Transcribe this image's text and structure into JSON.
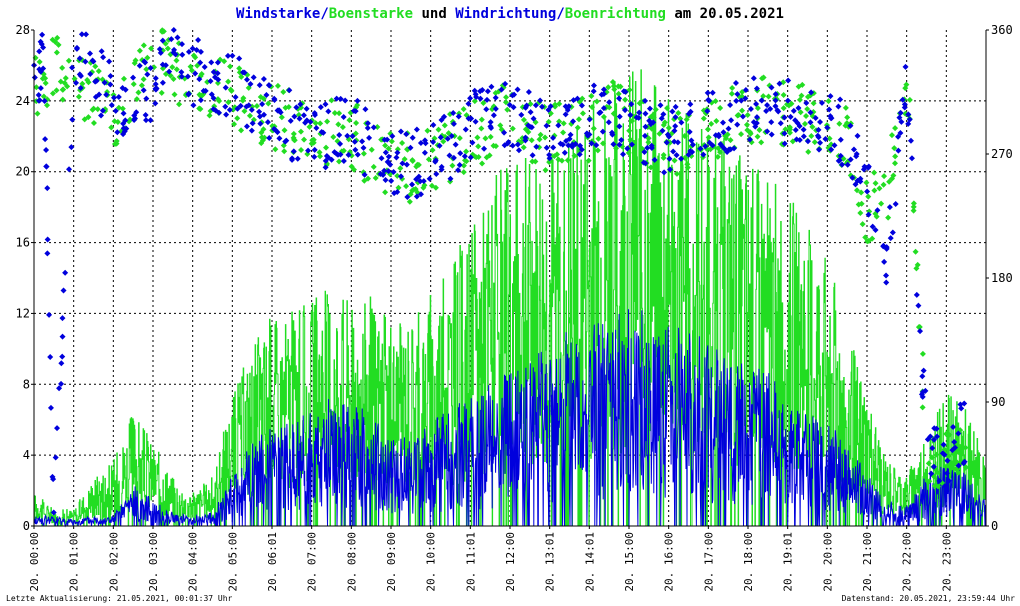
{
  "chart_data": {
    "type": "line",
    "title": {
      "part1": "Windstarke/",
      "part2": "Boenstarke",
      "part3": " und ",
      "part4": "Windrichtung/",
      "part5": "Boenrichtung",
      "part6": " am 20.05.2021"
    },
    "xlim": [
      0,
      24
    ],
    "ylim_left": [
      0,
      28
    ],
    "ylim_right": [
      0,
      360
    ],
    "yticks_left": [
      "0",
      "4",
      "8",
      "12",
      "16",
      "20",
      "24",
      "28"
    ],
    "yticks_right": [
      "0",
      "90",
      "180",
      "270",
      "360"
    ],
    "xticks": [
      "20. 00:00",
      "20. 01:00",
      "20. 02:00",
      "20. 03:00",
      "20. 04:00",
      "20. 05:00",
      "20. 06:01",
      "20. 07:00",
      "20. 08:00",
      "20. 09:00",
      "20. 10:00",
      "20. 11:01",
      "20. 12:00",
      "20. 13:01",
      "20. 14:01",
      "20. 15:00",
      "20. 16:00",
      "20. 17:00",
      "20. 18:00",
      "20. 19:01",
      "20. 20:00",
      "20. 21:00",
      "20. 22:00",
      "20. 23:00"
    ],
    "grid": true,
    "footer_left": "Letzte Aktualisierung: 21.05.2021, 00:01:37 Uhr",
    "footer_right": "Datenstand: 20.05.2021, 23:59:44 Uhr",
    "colors": {
      "wind": "#0000dd",
      "gust": "#22dd22",
      "grid": "#000000",
      "axis": "#000000"
    },
    "series": [
      {
        "name": "Windstarke",
        "x": [
          0,
          0.5,
          1,
          1.5,
          2,
          2.5,
          3,
          3.5,
          4,
          4.5,
          5,
          5.5,
          6,
          6.5,
          7,
          7.5,
          8,
          8.5,
          9,
          9.5,
          10,
          10.5,
          11,
          11.5,
          12,
          12.5,
          13,
          13.5,
          14,
          14.5,
          15,
          15.5,
          16,
          16.5,
          17,
          17.5,
          18,
          18.5,
          19,
          19.5,
          20,
          20.5,
          21,
          21.5,
          22,
          22.5,
          23,
          23.5,
          24
        ],
        "values": [
          0.3,
          0.3,
          0.2,
          0.3,
          0.3,
          1.2,
          0.8,
          0.4,
          0.3,
          0.4,
          1.5,
          2.5,
          3,
          3.2,
          3.3,
          3.8,
          3.5,
          3.5,
          2.5,
          2.8,
          3.2,
          3.5,
          3.8,
          4.2,
          4.5,
          5,
          5.5,
          5.8,
          6,
          6.2,
          6.5,
          6.3,
          6,
          5.8,
          5.5,
          5,
          4.8,
          4.5,
          4,
          3.5,
          3,
          2.5,
          1.5,
          0.8,
          0.6,
          1.5,
          2,
          1.5,
          0.8
        ]
      },
      {
        "name": "Boenstarke",
        "x": [
          0,
          0.5,
          1,
          1.5,
          2,
          2.5,
          3,
          3.5,
          4,
          4.5,
          5,
          5.5,
          6,
          6.5,
          7,
          7.5,
          8,
          8.5,
          9,
          9.5,
          10,
          10.5,
          11,
          11.5,
          12,
          12.5,
          13,
          13.5,
          14,
          14.5,
          15,
          15.5,
          16,
          16.5,
          17,
          17.5,
          18,
          18.5,
          19,
          19.5,
          20,
          20.5,
          21,
          21.5,
          22,
          22.5,
          23,
          23.5,
          24
        ],
        "values": [
          1,
          0.5,
          0.5,
          1.5,
          2,
          3.5,
          2.5,
          1.5,
          1,
          1.5,
          4,
          5.5,
          6.5,
          6.5,
          6.8,
          7.5,
          7,
          7,
          6,
          6.5,
          7,
          8,
          9,
          10.5,
          11,
          11.5,
          12,
          12.5,
          13,
          13.5,
          14,
          13.5,
          13,
          12.5,
          12,
          11.5,
          11,
          10.5,
          10,
          9,
          8,
          6,
          4,
          2,
          1.5,
          3,
          4,
          3.5,
          2
        ]
      },
      {
        "name": "Windrichtung",
        "x": [
          0,
          0.25,
          0.5,
          1,
          1.5,
          2,
          2.5,
          3,
          3.5,
          4,
          4.5,
          5,
          5.5,
          6,
          6.5,
          7,
          7.5,
          8,
          8.5,
          9,
          9.5,
          10,
          10.5,
          11,
          11.5,
          12,
          12.5,
          13,
          13.5,
          14,
          14.5,
          15,
          15.5,
          16,
          16.5,
          17,
          17.5,
          18,
          18.5,
          19,
          19.5,
          20,
          20.5,
          21,
          21.5,
          22,
          22.5,
          23,
          23.5
        ],
        "values": [
          330,
          335,
          5,
          335,
          330,
          310,
          305,
          320,
          345,
          330,
          325,
          320,
          310,
          305,
          290,
          280,
          285,
          290,
          275,
          265,
          260,
          270,
          275,
          290,
          295,
          300,
          290,
          285,
          290,
          295,
          300,
          290,
          285,
          280,
          285,
          290,
          295,
          300,
          310,
          300,
          295,
          290,
          285,
          250,
          200,
          320,
          60,
          50,
          70
        ]
      },
      {
        "name": "Boenrichtung",
        "x": [
          0,
          0.5,
          1,
          1.5,
          2,
          2.5,
          3,
          3.5,
          4,
          4.5,
          5,
          5.5,
          6,
          6.5,
          7,
          7.5,
          8,
          8.5,
          9,
          9.5,
          10,
          10.5,
          11,
          11.5,
          12,
          12.5,
          13,
          13.5,
          14,
          14.5,
          15,
          15.5,
          16,
          16.5,
          17,
          17.5,
          18,
          18.5,
          19,
          19.5,
          20,
          20.5,
          21,
          21.5,
          22,
          22.5,
          23,
          23.5
        ],
        "values": [
          320,
          330,
          330,
          310,
          300,
          315,
          340,
          330,
          330,
          320,
          310,
          305,
          300,
          290,
          280,
          285,
          285,
          270,
          265,
          260,
          265,
          275,
          285,
          290,
          300,
          290,
          280,
          285,
          290,
          300,
          295,
          285,
          280,
          280,
          290,
          295,
          300,
          305,
          300,
          295,
          290,
          280,
          230,
          240,
          330,
          50,
          45,
          60
        ]
      }
    ]
  }
}
